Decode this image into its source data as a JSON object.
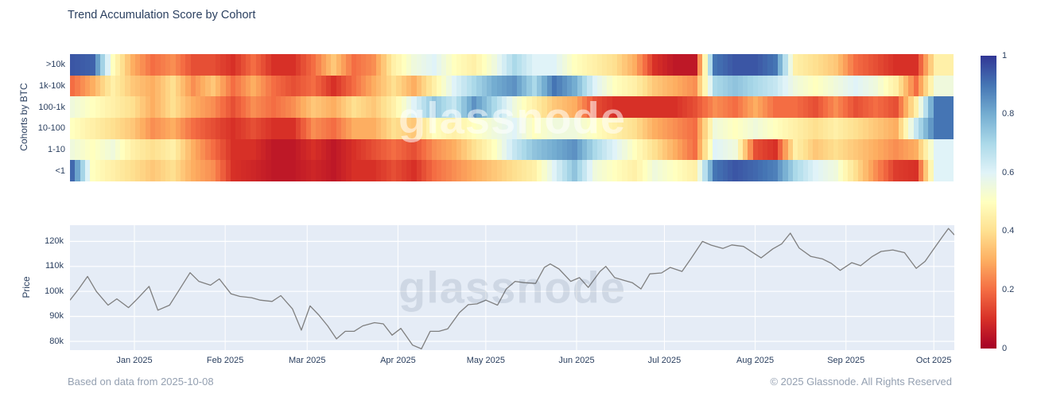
{
  "title": "Trend Accumulation Score by Cohort",
  "watermark": "glassnode",
  "footer": {
    "left": "Based on data from 2025-10-08",
    "right": "© 2025 Glassnode. All Rights Reserved"
  },
  "colors": {
    "title_text": "#2a3f5f",
    "tick_text": "#2a3f5f",
    "footer_text": "#94a0b1",
    "price_line": "#7f7f7f",
    "plot_background": "#e5ecf6",
    "grid_line": "#ffffff",
    "colormap_rdylbu": [
      [
        0,
        "#a50026"
      ],
      [
        0.1,
        "#d73027"
      ],
      [
        0.2,
        "#f46d43"
      ],
      [
        0.3,
        "#fdae61"
      ],
      [
        0.4,
        "#fee090"
      ],
      [
        0.5,
        "#ffffbf"
      ],
      [
        0.6,
        "#e0f3f8"
      ],
      [
        0.7,
        "#abd9e9"
      ],
      [
        0.8,
        "#74add1"
      ],
      [
        0.9,
        "#4575b4"
      ],
      [
        1,
        "#313695"
      ]
    ]
  },
  "chart_data": [
    {
      "type": "heatmap",
      "title": "Trend Accumulation Score by Cohort",
      "ylabel": "Cohorts by BTC",
      "rows": [
        ">10k",
        "1k-10k",
        "100-1k",
        "10-100",
        "1-10",
        "<1"
      ],
      "zmin": 0,
      "zmax": 1,
      "colorscale": "RdYlBu (0=red, 0.5=yellow, 1=blue)",
      "colorbar_ticks": [
        [
          1,
          "1"
        ],
        [
          0.8,
          "0.8"
        ],
        [
          0.6,
          "0.6"
        ],
        [
          0.4,
          "0.4"
        ],
        [
          0.2,
          "0.2"
        ],
        [
          0,
          "0"
        ]
      ],
      "x": [
        "2024-12-10",
        "2024-12-17",
        "2024-12-24",
        "2024-12-31",
        "2025-01-07",
        "2025-01-14",
        "2025-01-21",
        "2025-01-28",
        "2025-02-04",
        "2025-02-11",
        "2025-02-18",
        "2025-02-25",
        "2025-03-04",
        "2025-03-11",
        "2025-03-18",
        "2025-03-25",
        "2025-04-01",
        "2025-04-08",
        "2025-04-15",
        "2025-04-22",
        "2025-04-29",
        "2025-05-06",
        "2025-05-13",
        "2025-05-20",
        "2025-05-27",
        "2025-06-03",
        "2025-06-10",
        "2025-06-17",
        "2025-06-24",
        "2025-07-01",
        "2025-07-08",
        "2025-07-15",
        "2025-07-22",
        "2025-07-29",
        "2025-08-05",
        "2025-08-12",
        "2025-08-19",
        "2025-08-26",
        "2025-09-02",
        "2025-09-09",
        "2025-09-16",
        "2025-09-23",
        "2025-09-30",
        "2025-10-07"
      ],
      "series": [
        {
          "name": ">10k",
          "values": [
            0.95,
            0.93,
            0.5,
            0.3,
            0.2,
            0.25,
            0.15,
            0.15,
            0.1,
            0.2,
            0.1,
            0.1,
            0.2,
            0.35,
            0.2,
            0.25,
            0.45,
            0.55,
            0.6,
            0.5,
            0.45,
            0.55,
            0.7,
            0.6,
            0.6,
            0.5,
            0.45,
            0.4,
            0.3,
            0.1,
            0.05,
            0.05,
            0.9,
            0.95,
            0.95,
            0.9,
            0.45,
            0.4,
            0.35,
            0.2,
            0.15,
            0.1,
            0.1,
            0.45
          ]
        },
        {
          "name": "1k-10k",
          "values": [
            0.2,
            0.3,
            0.45,
            0.35,
            0.3,
            0.4,
            0.25,
            0.35,
            0.2,
            0.3,
            0.2,
            0.15,
            0.2,
            0.1,
            0.2,
            0.3,
            0.4,
            0.3,
            0.45,
            0.6,
            0.7,
            0.8,
            0.85,
            0.7,
            0.9,
            0.8,
            0.6,
            0.5,
            0.45,
            0.35,
            0.3,
            0.25,
            0.7,
            0.75,
            0.7,
            0.65,
            0.55,
            0.5,
            0.55,
            0.6,
            0.55,
            0.45,
            0.2,
            0.55
          ]
        },
        {
          "name": "100-1k",
          "values": [
            0.55,
            0.5,
            0.45,
            0.4,
            0.3,
            0.4,
            0.3,
            0.25,
            0.15,
            0.25,
            0.2,
            0.25,
            0.35,
            0.3,
            0.4,
            0.35,
            0.45,
            0.6,
            0.75,
            0.65,
            0.85,
            0.7,
            0.55,
            0.45,
            0.35,
            0.3,
            0.15,
            0.1,
            0.1,
            0.1,
            0.1,
            0.15,
            0.25,
            0.2,
            0.3,
            0.2,
            0.2,
            0.15,
            0.25,
            0.15,
            0.2,
            0.15,
            0.45,
            0.9
          ]
        },
        {
          "name": "10-100",
          "values": [
            0.5,
            0.45,
            0.4,
            0.35,
            0.25,
            0.3,
            0.2,
            0.15,
            0.1,
            0.15,
            0.1,
            0.1,
            0.25,
            0.2,
            0.3,
            0.3,
            0.4,
            0.35,
            0.5,
            0.45,
            0.5,
            0.55,
            0.6,
            0.5,
            0.55,
            0.55,
            0.5,
            0.45,
            0.4,
            0.3,
            0.25,
            0.2,
            0.55,
            0.5,
            0.55,
            0.5,
            0.45,
            0.4,
            0.45,
            0.4,
            0.35,
            0.3,
            0.65,
            0.9
          ]
        },
        {
          "name": "1-10",
          "values": [
            0.55,
            0.5,
            0.55,
            0.45,
            0.4,
            0.45,
            0.3,
            0.2,
            0.1,
            0.1,
            0.05,
            0.05,
            0.1,
            0.05,
            0.1,
            0.15,
            0.2,
            0.15,
            0.25,
            0.3,
            0.4,
            0.5,
            0.65,
            0.75,
            0.8,
            0.85,
            0.7,
            0.6,
            0.5,
            0.4,
            0.3,
            0.2,
            0.6,
            0.55,
            0.15,
            0.1,
            0.45,
            0.35,
            0.4,
            0.35,
            0.3,
            0.25,
            0.3,
            0.6
          ]
        },
        {
          "name": "<1",
          "values": [
            0.92,
            0.5,
            0.45,
            0.4,
            0.35,
            0.4,
            0.3,
            0.25,
            0.1,
            0.08,
            0.05,
            0.05,
            0.08,
            0.05,
            0.1,
            0.1,
            0.15,
            0.1,
            0.2,
            0.25,
            0.3,
            0.35,
            0.4,
            0.45,
            0.6,
            0.75,
            0.55,
            0.5,
            0.45,
            0.55,
            0.5,
            0.45,
            0.9,
            0.95,
            0.92,
            0.88,
            0.7,
            0.6,
            0.55,
            0.4,
            0.25,
            0.12,
            0.1,
            0.6
          ]
        }
      ]
    },
    {
      "type": "line",
      "ylabel": "Price",
      "unit": "thousand USD",
      "ylim": [
        76.5,
        126.5
      ],
      "yticks": [
        [
          80,
          "80k"
        ],
        [
          90,
          "90k"
        ],
        [
          100,
          "100k"
        ],
        [
          110,
          "110k"
        ],
        [
          120,
          "120k"
        ]
      ],
      "xticks": [
        [
          "2025-01-01",
          "Jan 2025"
        ],
        [
          "2025-02-01",
          "Feb 2025"
        ],
        [
          "2025-03-01",
          "Mar 2025"
        ],
        [
          "2025-04-01",
          "Apr 2025"
        ],
        [
          "2025-05-01",
          "May 2025"
        ],
        [
          "2025-06-01",
          "Jun 2025"
        ],
        [
          "2025-07-01",
          "Jul 2025"
        ],
        [
          "2025-08-01",
          "Aug 2025"
        ],
        [
          "2025-09-01",
          "Sep 2025"
        ],
        [
          "2025-10-01",
          "Oct 2025"
        ]
      ],
      "points": [
        [
          "2024-12-10",
          96.5
        ],
        [
          "2024-12-13",
          101
        ],
        [
          "2024-12-16",
          106
        ],
        [
          "2024-12-19",
          100
        ],
        [
          "2024-12-23",
          94.5
        ],
        [
          "2024-12-26",
          97
        ],
        [
          "2024-12-30",
          93.5
        ],
        [
          "2025-01-02",
          97
        ],
        [
          "2025-01-06",
          102
        ],
        [
          "2025-01-09",
          92.5
        ],
        [
          "2025-01-13",
          94.5
        ],
        [
          "2025-01-16",
          100
        ],
        [
          "2025-01-20",
          107.5
        ],
        [
          "2025-01-23",
          104
        ],
        [
          "2025-01-27",
          102.5
        ],
        [
          "2025-01-30",
          105
        ],
        [
          "2025-02-03",
          99
        ],
        [
          "2025-02-06",
          98
        ],
        [
          "2025-02-10",
          97.5
        ],
        [
          "2025-02-13",
          96.5
        ],
        [
          "2025-02-17",
          96
        ],
        [
          "2025-02-20",
          98.3
        ],
        [
          "2025-02-24",
          93
        ],
        [
          "2025-02-27",
          84.5
        ],
        [
          "2025-03-02",
          94.2
        ],
        [
          "2025-03-05",
          90.5
        ],
        [
          "2025-03-08",
          86.2
        ],
        [
          "2025-03-11",
          81
        ],
        [
          "2025-03-14",
          84
        ],
        [
          "2025-03-17",
          84
        ],
        [
          "2025-03-20",
          86.2
        ],
        [
          "2025-03-24",
          87.5
        ],
        [
          "2025-03-27",
          87
        ],
        [
          "2025-03-30",
          82.5
        ],
        [
          "2025-04-02",
          85.2
        ],
        [
          "2025-04-06",
          78.5
        ],
        [
          "2025-04-09",
          77
        ],
        [
          "2025-04-12",
          84
        ],
        [
          "2025-04-15",
          84
        ],
        [
          "2025-04-18",
          85
        ],
        [
          "2025-04-22",
          91.5
        ],
        [
          "2025-04-25",
          94.7
        ],
        [
          "2025-04-28",
          95
        ],
        [
          "2025-05-01",
          96.5
        ],
        [
          "2025-05-05",
          94.5
        ],
        [
          "2025-05-08",
          101
        ],
        [
          "2025-05-11",
          104
        ],
        [
          "2025-05-14",
          103.5
        ],
        [
          "2025-05-18",
          103.2
        ],
        [
          "2025-05-21",
          109.6
        ],
        [
          "2025-05-23",
          111
        ],
        [
          "2025-05-26",
          109
        ],
        [
          "2025-05-30",
          104
        ],
        [
          "2025-06-02",
          105.5
        ],
        [
          "2025-06-05",
          101.6
        ],
        [
          "2025-06-09",
          108
        ],
        [
          "2025-06-11",
          110
        ],
        [
          "2025-06-14",
          105.5
        ],
        [
          "2025-06-17",
          104.5
        ],
        [
          "2025-06-20",
          103.5
        ],
        [
          "2025-06-23",
          101
        ],
        [
          "2025-06-26",
          107
        ],
        [
          "2025-06-30",
          107.4
        ],
        [
          "2025-07-03",
          109.6
        ],
        [
          "2025-07-07",
          108
        ],
        [
          "2025-07-10",
          113
        ],
        [
          "2025-07-14",
          120
        ],
        [
          "2025-07-17",
          118.5
        ],
        [
          "2025-07-21",
          117.2
        ],
        [
          "2025-07-24",
          118.6
        ],
        [
          "2025-07-28",
          118
        ],
        [
          "2025-07-31",
          115.7
        ],
        [
          "2025-08-03",
          113.4
        ],
        [
          "2025-08-07",
          117
        ],
        [
          "2025-08-10",
          119
        ],
        [
          "2025-08-13",
          123.3
        ],
        [
          "2025-08-16",
          117.4
        ],
        [
          "2025-08-20",
          114
        ],
        [
          "2025-08-24",
          113
        ],
        [
          "2025-08-27",
          111.2
        ],
        [
          "2025-08-30",
          108.4
        ],
        [
          "2025-09-03",
          111.5
        ],
        [
          "2025-09-06",
          110.3
        ],
        [
          "2025-09-10",
          114
        ],
        [
          "2025-09-13",
          116
        ],
        [
          "2025-09-17",
          116.6
        ],
        [
          "2025-09-21",
          115.5
        ],
        [
          "2025-09-25",
          109.2
        ],
        [
          "2025-09-28",
          112
        ],
        [
          "2025-10-01",
          117
        ],
        [
          "2025-10-04",
          122
        ],
        [
          "2025-10-06",
          125.2
        ],
        [
          "2025-10-08",
          122.6
        ]
      ]
    }
  ]
}
